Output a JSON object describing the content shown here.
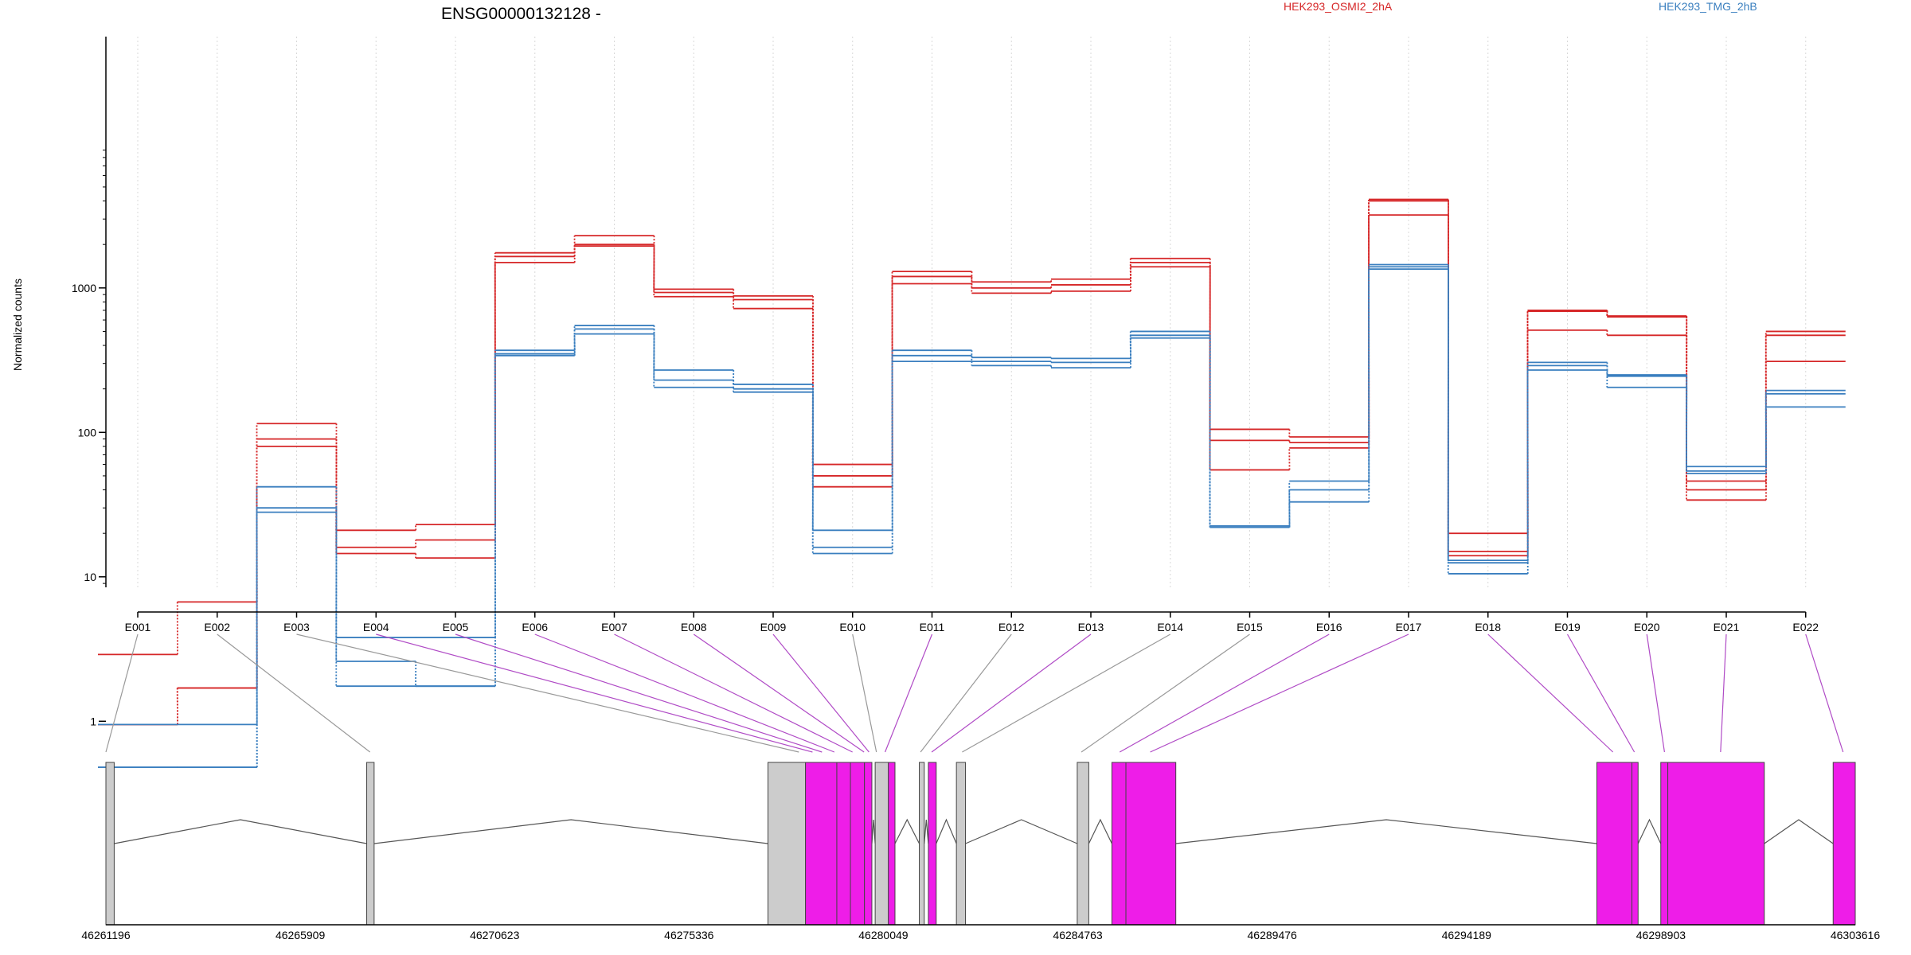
{
  "chart_data": {
    "type": "line",
    "title": "ENSG00000132128 -",
    "ylabel": "Normalized counts",
    "y_scale": "log10",
    "y_ticks": [
      1,
      10,
      100,
      1000
    ],
    "y_tick_labels": [
      "1",
      "10",
      "100",
      "1000"
    ],
    "ylim": [
      0.5,
      6000
    ],
    "grid": "vertical dotted lines at each exon",
    "legend": [
      {
        "name": "HEK293_OSMI2_2hA",
        "color": "#d62728"
      },
      {
        "name": "HEK293_TMG_2hB",
        "color": "#3a7fbf"
      }
    ],
    "categories": [
      "E001",
      "E002",
      "E003",
      "E004",
      "E005",
      "E006",
      "E007",
      "E008",
      "E009",
      "E010",
      "E011",
      "E012",
      "E013",
      "E014",
      "E015",
      "E016",
      "E017",
      "E018",
      "E019",
      "E020",
      "E021",
      "E022"
    ],
    "series": [
      {
        "color": "#d62728",
        "values": [
          2.9,
          6.7,
          115,
          21,
          23,
          1750,
          2300,
          980,
          880,
          60,
          1300,
          1100,
          1150,
          1600,
          105,
          93,
          4100,
          20,
          700,
          640,
          46,
          500
        ]
      },
      {
        "color": "#d62728",
        "values": [
          0.95,
          1.7,
          90,
          16,
          18,
          1650,
          2000,
          930,
          830,
          50,
          1200,
          1000,
          1050,
          1500,
          88,
          85,
          4000,
          15,
          690,
          630,
          40,
          470
        ]
      },
      {
        "color": "#d62728",
        "values": [
          0.95,
          1.7,
          80,
          14.5,
          13.5,
          1500,
          1950,
          870,
          720,
          42,
          1070,
          920,
          950,
          1400,
          55,
          78,
          3200,
          14,
          510,
          470,
          34,
          310
        ]
      },
      {
        "color": "#3a7fbf",
        "values": [
          0.95,
          0.95,
          42,
          3.8,
          3.8,
          370,
          550,
          270,
          215,
          21,
          370,
          330,
          325,
          500,
          22.5,
          46,
          1450,
          13,
          305,
          250,
          58,
          195
        ]
      },
      {
        "color": "#3a7fbf",
        "values": [
          0.48,
          0.48,
          30,
          2.6,
          1.75,
          350,
          520,
          230,
          200,
          16,
          340,
          310,
          305,
          470,
          22,
          40,
          1400,
          12.5,
          290,
          245,
          54,
          185
        ]
      },
      {
        "color": "#3a7fbf",
        "values": [
          0.48,
          0.48,
          28,
          1.75,
          1.75,
          340,
          480,
          205,
          190,
          14.5,
          310,
          290,
          280,
          450,
          22,
          33,
          1350,
          10.5,
          270,
          205,
          52,
          150
        ]
      }
    ],
    "gene_axis_ticks": [
      "46261196",
      "46265909",
      "46270623",
      "46275336",
      "46280049",
      "46284763",
      "46289476",
      "46294189",
      "46298903",
      "46303616"
    ],
    "gene_axis_range": [
      46261196,
      46303616
    ],
    "exon_highlight_color": "#ee1de8",
    "exon_plain_color": "#cccccc",
    "exons": [
      {
        "start": 46261196,
        "end": 46261397,
        "significant": false
      },
      {
        "start": 46267520,
        "end": 46267700,
        "significant": false
      },
      {
        "start": 46277250,
        "end": 46278160,
        "significant": false
      },
      {
        "start": 46278160,
        "end": 46278920,
        "significant": true
      },
      {
        "start": 46278920,
        "end": 46279590,
        "significant": true
      },
      {
        "start": 46279250,
        "end": 46279590,
        "significant": true
      },
      {
        "start": 46279590,
        "end": 46279770,
        "significant": true
      },
      {
        "start": 46279850,
        "end": 46280170,
        "significant": false
      },
      {
        "start": 46280170,
        "end": 46280330,
        "significant": true
      },
      {
        "start": 46280920,
        "end": 46281040,
        "significant": false
      },
      {
        "start": 46281140,
        "end": 46281330,
        "significant": true
      },
      {
        "start": 46281820,
        "end": 46282040,
        "significant": false
      },
      {
        "start": 46284750,
        "end": 46285030,
        "significant": false
      },
      {
        "start": 46285590,
        "end": 46285930,
        "significant": true
      },
      {
        "start": 46285930,
        "end": 46287140,
        "significant": true
      },
      {
        "start": 46297350,
        "end": 46298200,
        "significant": true
      },
      {
        "start": 46298200,
        "end": 46298350,
        "significant": true
      },
      {
        "start": 46298900,
        "end": 46299070,
        "significant": true
      },
      {
        "start": 46299070,
        "end": 46301410,
        "significant": true
      },
      {
        "start": 46303080,
        "end": 46303616,
        "significant": true
      }
    ],
    "exon_bins": [
      {
        "label": "E001",
        "gene_pos": 46261196,
        "significant": false
      },
      {
        "label": "E002",
        "gene_pos": 46267600,
        "significant": false
      },
      {
        "label": "E003",
        "gene_pos": 46278000,
        "significant": false
      },
      {
        "label": "E004",
        "gene_pos": 46278330,
        "significant": true
      },
      {
        "label": "E005",
        "gene_pos": 46278560,
        "significant": true
      },
      {
        "label": "E006",
        "gene_pos": 46278860,
        "significant": true
      },
      {
        "label": "E007",
        "gene_pos": 46279300,
        "significant": true
      },
      {
        "label": "E008",
        "gene_pos": 46279580,
        "significant": true
      },
      {
        "label": "E009",
        "gene_pos": 46279700,
        "significant": true
      },
      {
        "label": "E010",
        "gene_pos": 46279880,
        "significant": false
      },
      {
        "label": "E011",
        "gene_pos": 46280090,
        "significant": true
      },
      {
        "label": "E012",
        "gene_pos": 46280950,
        "significant": false
      },
      {
        "label": "E013",
        "gene_pos": 46281220,
        "significant": true
      },
      {
        "label": "E014",
        "gene_pos": 46281960,
        "significant": false
      },
      {
        "label": "E015",
        "gene_pos": 46284850,
        "significant": false
      },
      {
        "label": "E016",
        "gene_pos": 46285780,
        "significant": true
      },
      {
        "label": "E017",
        "gene_pos": 46286520,
        "significant": true
      },
      {
        "label": "E018",
        "gene_pos": 46297740,
        "significant": true
      },
      {
        "label": "E019",
        "gene_pos": 46298260,
        "significant": true
      },
      {
        "label": "E020",
        "gene_pos": 46298990,
        "significant": true
      },
      {
        "label": "E021",
        "gene_pos": 46300350,
        "significant": true
      },
      {
        "label": "E022",
        "gene_pos": 46303320,
        "significant": true
      }
    ]
  }
}
